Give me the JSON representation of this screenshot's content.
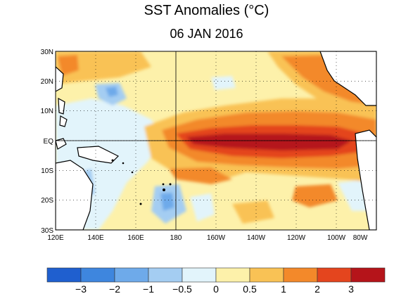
{
  "title": "SST Anomalies (°C)",
  "date": "06 JAN 2016",
  "map": {
    "region": "Tropical Pacific",
    "lon_range": [
      "120E",
      "280E (80W)"
    ],
    "lat_range": [
      "30S",
      "30N"
    ],
    "grid": "dotted"
  },
  "axes": {
    "lat_labels": [
      "30N",
      "20N",
      "10N",
      "EQ",
      "10S",
      "20S",
      "30S"
    ],
    "lon_labels": [
      "120E",
      "140E",
      "160E",
      "180",
      "160W",
      "140W",
      "120W",
      "100W",
      "80W"
    ]
  },
  "colorbar": {
    "colors": [
      "#1f5fcf",
      "#3e86de",
      "#6eaaea",
      "#a4cdf2",
      "#e2f4fb",
      "#fdf1aa",
      "#f9c255",
      "#f3892a",
      "#e4451e",
      "#b5141a"
    ],
    "tick_labels": [
      "−3",
      "−2",
      "−1",
      "−0.5",
      "0",
      "0.5",
      "1",
      "2",
      "3"
    ]
  },
  "colors": {
    "land": "#ffffff",
    "neutral_ocean": "#fdf1aa",
    "coast": "#000000"
  }
}
